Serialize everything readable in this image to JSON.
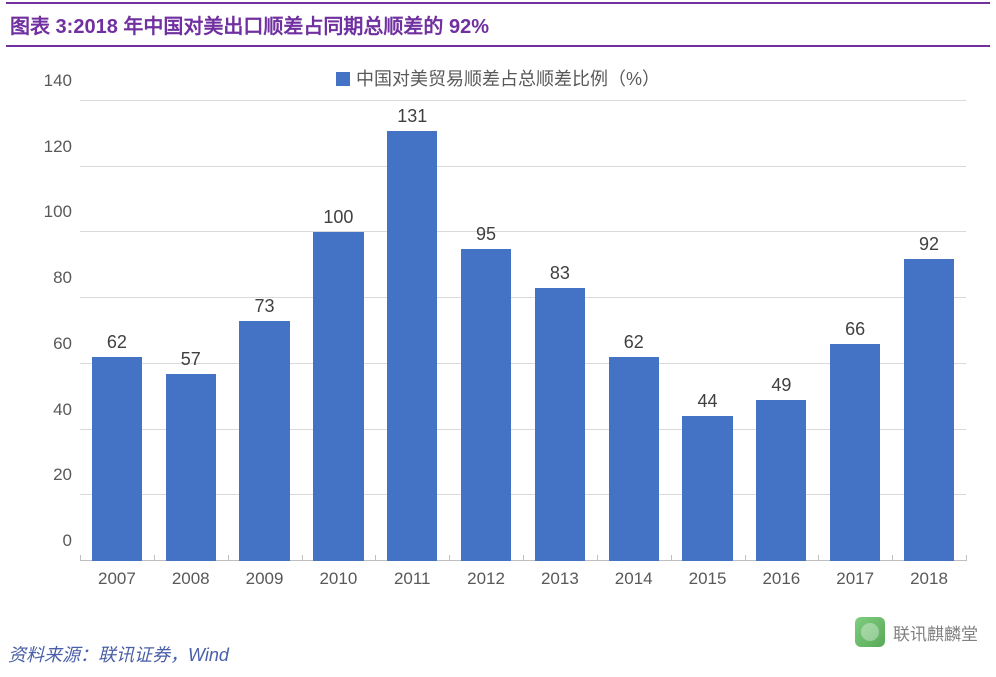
{
  "title": "图表 3:2018 年中国对美出口顺差占同期总顺差的 92%",
  "legend_label": "中国对美贸易顺差占总顺差比例（%）",
  "source_label": "资料来源：联讯证券，Wind",
  "watermark_text": "联讯麒麟堂",
  "chart": {
    "type": "bar",
    "categories": [
      "2007",
      "2008",
      "2009",
      "2010",
      "2011",
      "2012",
      "2013",
      "2014",
      "2015",
      "2016",
      "2017",
      "2018"
    ],
    "values": [
      62,
      57,
      73,
      100,
      131,
      95,
      83,
      62,
      44,
      49,
      66,
      92
    ],
    "bar_color": "#4472c4",
    "ylim": [
      0,
      140
    ],
    "ytick_step": 20,
    "grid_color": "#d9d9d9",
    "axis_color": "#bfbfbf",
    "background_color": "#ffffff",
    "label_fontsize": 18,
    "tick_fontsize": 17,
    "title_color": "#7030a0",
    "title_fontsize": 20,
    "bar_width": 0.68,
    "value_label_color": "#404040",
    "tick_label_color": "#595959"
  }
}
